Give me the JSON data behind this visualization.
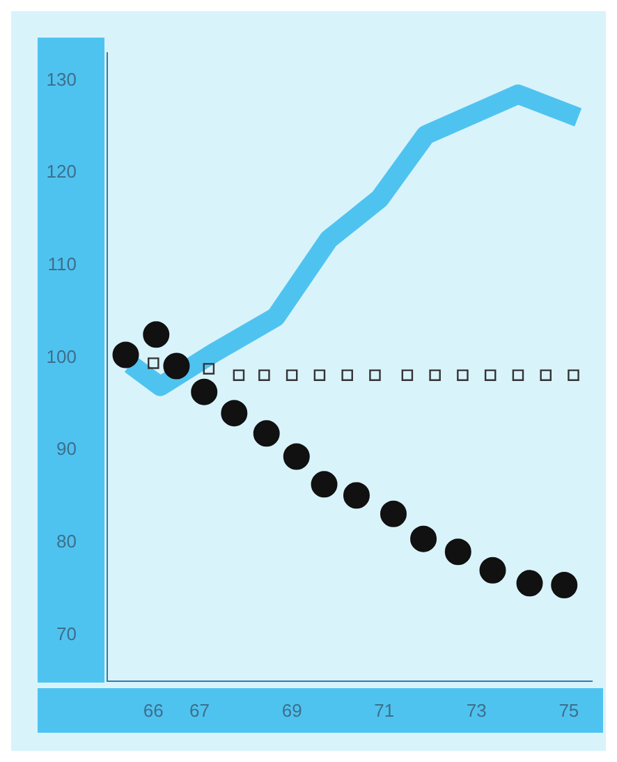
{
  "chart_data": {
    "type": "line",
    "xlim": [
      65,
      75.5
    ],
    "xticks": [
      66,
      67,
      69,
      71,
      73,
      75
    ],
    "ylim": [
      65,
      133
    ],
    "yticks": [
      70,
      80,
      90,
      100,
      110,
      120,
      130
    ],
    "grid": false,
    "legend": false,
    "series": [
      {
        "color": "#4fc3f0",
        "marker": "none",
        "x": [
          65.5,
          66.15,
          67.3,
          68.65,
          69.8,
          70.9,
          71.9,
          73.9,
          75.2
        ],
        "values": [
          99.3,
          96.9,
          100.5,
          104.4,
          112.8,
          117.2,
          124.1,
          128.5,
          126
        ]
      },
      {
        "type": "scatter",
        "color": "#333333",
        "marker": "square",
        "x": [
          66,
          67.2,
          67.85,
          68.4,
          69,
          69.6,
          70.2,
          70.8,
          71.5,
          72.1,
          72.7,
          73.3,
          73.9,
          74.5,
          75.1
        ],
        "values": [
          99.4,
          98.8,
          98.1,
          98.1,
          98.1,
          98.1,
          98.1,
          98.1,
          98.1,
          98.1,
          98.1,
          98.1,
          98.1,
          98.1,
          98.1
        ]
      },
      {
        "type": "scatter",
        "color": "#111111",
        "marker": "circle",
        "x": [
          65.4,
          66.06,
          66.5,
          67.1,
          67.75,
          68.45,
          69.1,
          69.7,
          70.4,
          71.2,
          71.85,
          72.6,
          73.35,
          74.15,
          74.9
        ],
        "values": [
          100.3,
          102.5,
          99.1,
          96.3,
          94,
          91.8,
          89.3,
          86.3,
          85.1,
          83.1,
          80.4,
          79,
          77,
          75.6,
          75.4
        ]
      }
    ]
  }
}
